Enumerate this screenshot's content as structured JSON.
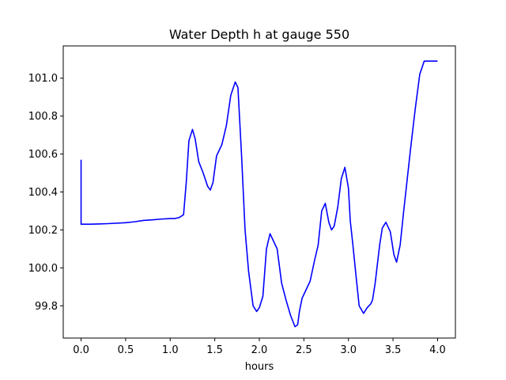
{
  "chart_data": {
    "type": "line",
    "title": "Water Depth h at gauge 550",
    "xlabel": "hours",
    "ylabel": "",
    "xlim": [
      -0.2,
      4.2
    ],
    "ylim": [
      99.63,
      101.17
    ],
    "xticks": [
      0.0,
      0.5,
      1.0,
      1.5,
      2.0,
      2.5,
      3.0,
      3.5,
      4.0
    ],
    "xtick_labels": [
      "0.0",
      "0.5",
      "1.0",
      "1.5",
      "2.0",
      "2.5",
      "3.0",
      "3.5",
      "4.0"
    ],
    "yticks": [
      99.8,
      100.0,
      100.2,
      100.4,
      100.6,
      100.8,
      101.0
    ],
    "ytick_labels": [
      "99.8",
      "100.0",
      "100.2",
      "100.4",
      "100.6",
      "100.8",
      "101.0"
    ],
    "grid": false,
    "series": [
      {
        "color": "#0000ff",
        "x": [
          0.0,
          0.0,
          0.0,
          0.1,
          0.3,
          0.5,
          0.6,
          0.7,
          0.8,
          0.9,
          1.0,
          1.05,
          1.1,
          1.15,
          1.18,
          1.21,
          1.25,
          1.28,
          1.32,
          1.37,
          1.42,
          1.45,
          1.48,
          1.52,
          1.58,
          1.63,
          1.68,
          1.73,
          1.76,
          1.8,
          1.84,
          1.88,
          1.93,
          1.97,
          2.0,
          2.04,
          2.08,
          2.12,
          2.15,
          2.2,
          2.25,
          2.3,
          2.35,
          2.4,
          2.43,
          2.45,
          2.48,
          2.52,
          2.57,
          2.62,
          2.66,
          2.7,
          2.74,
          2.78,
          2.81,
          2.84,
          2.88,
          2.92,
          2.96,
          3.0,
          3.02,
          3.05,
          3.08,
          3.12,
          3.17,
          3.21,
          3.25,
          3.27,
          3.3,
          3.35,
          3.38,
          3.42,
          3.47,
          3.51,
          3.54,
          3.58,
          3.62,
          3.66,
          3.7,
          3.75,
          3.8,
          3.85,
          3.9,
          3.95,
          4.0
        ],
        "values": [
          100.57,
          100.23,
          100.23,
          100.23,
          100.233,
          100.238,
          100.243,
          100.25,
          100.253,
          100.257,
          100.26,
          100.26,
          100.265,
          100.28,
          100.45,
          100.67,
          100.73,
          100.68,
          100.56,
          100.5,
          100.43,
          100.41,
          100.45,
          100.59,
          100.65,
          100.75,
          100.91,
          100.98,
          100.95,
          100.6,
          100.2,
          99.98,
          99.8,
          99.77,
          99.79,
          99.85,
          100.1,
          100.18,
          100.15,
          100.1,
          99.92,
          99.83,
          99.75,
          99.69,
          99.7,
          99.77,
          99.84,
          99.88,
          99.93,
          100.04,
          100.12,
          100.3,
          100.34,
          100.24,
          100.2,
          100.22,
          100.32,
          100.47,
          100.53,
          100.42,
          100.25,
          100.12,
          99.98,
          99.8,
          99.76,
          99.79,
          99.81,
          99.83,
          99.92,
          100.12,
          100.21,
          100.24,
          100.19,
          100.07,
          100.03,
          100.12,
          100.3,
          100.47,
          100.64,
          100.84,
          101.02,
          101.09,
          101.09,
          101.09,
          101.09
        ]
      }
    ]
  }
}
